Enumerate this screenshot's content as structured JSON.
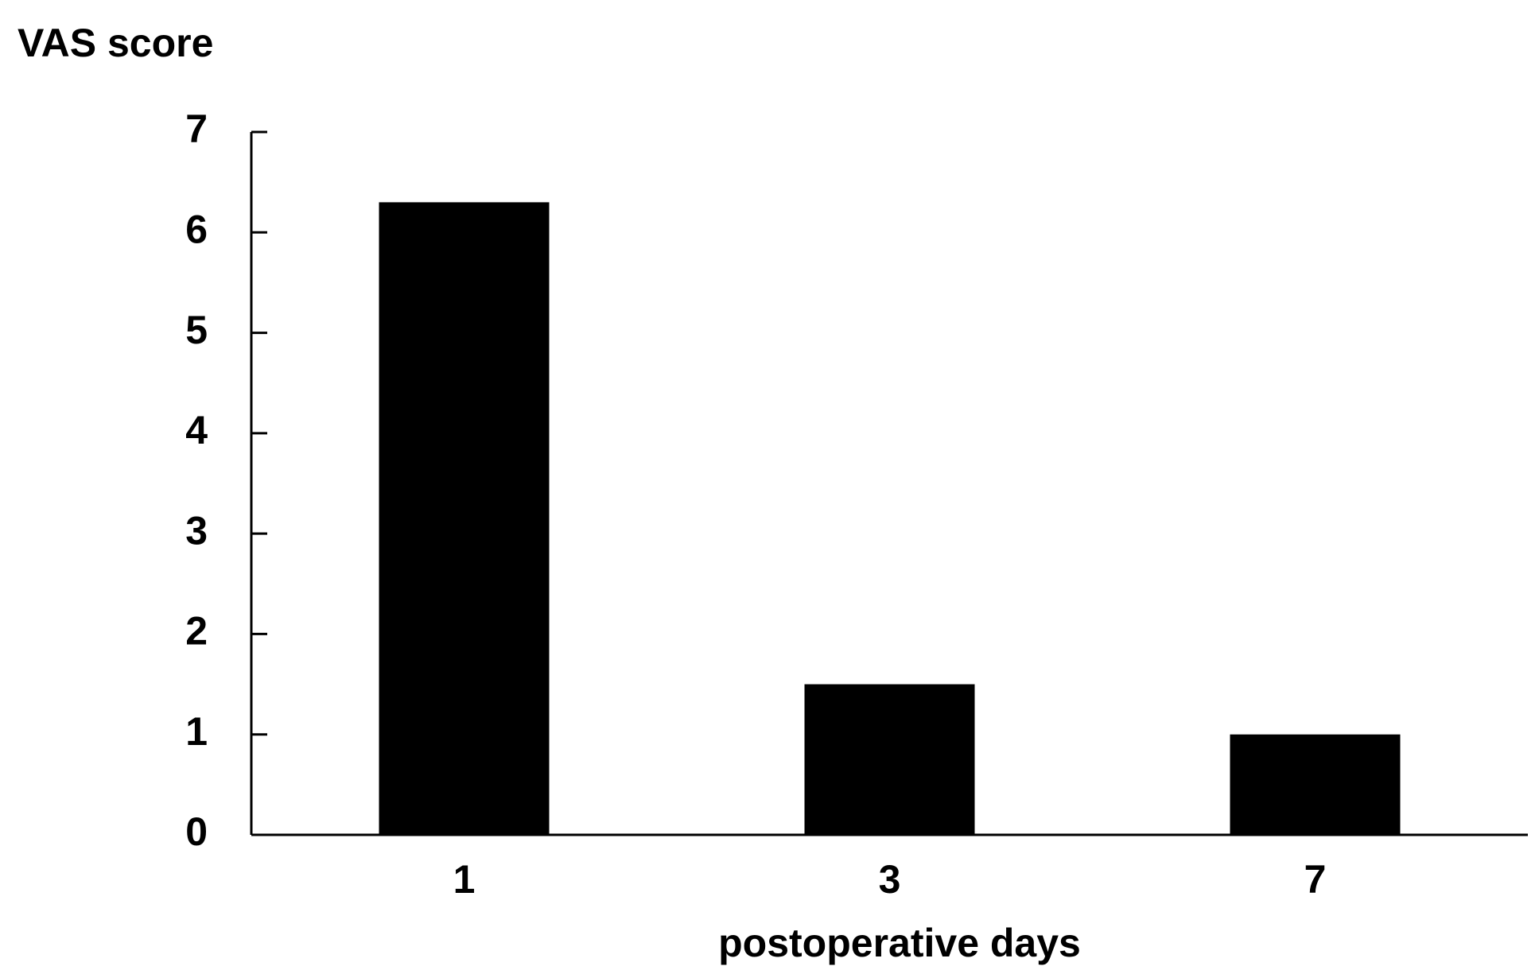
{
  "chart_data": {
    "type": "bar",
    "y_label": "VAS score",
    "x_label": "postoperative days",
    "categories": [
      "1",
      "3",
      "7"
    ],
    "values": [
      6.3,
      1.5,
      1.0
    ],
    "color": "#000000",
    "ylim": [
      0,
      7
    ],
    "yticks": [
      0,
      1,
      2,
      3,
      4,
      5,
      6,
      7
    ],
    "grid": false
  }
}
